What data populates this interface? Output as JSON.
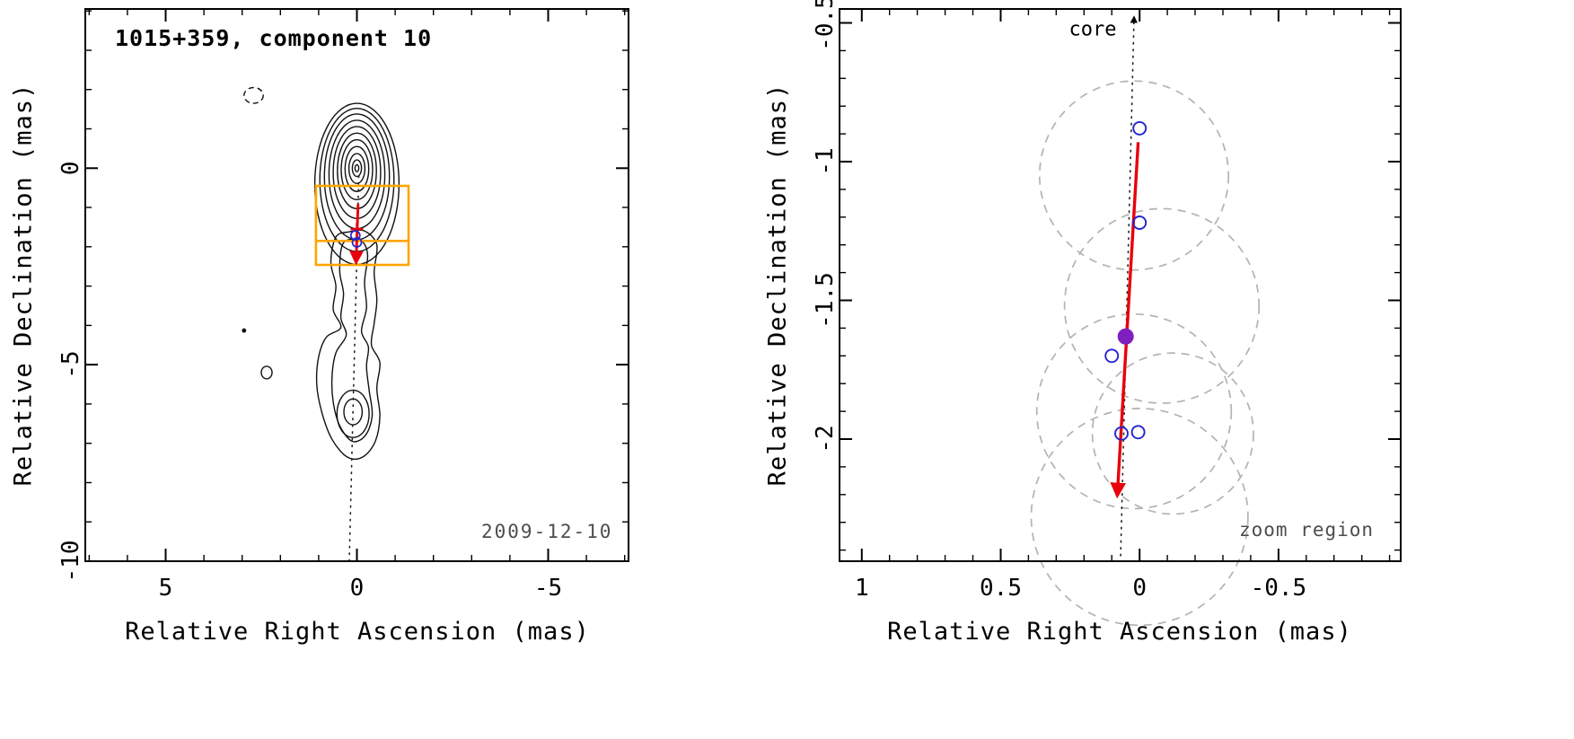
{
  "left_panel": {
    "title": "1015+359, component 10",
    "date_label": "2009-12-10",
    "xlabel": "Relative Right Ascension (mas)",
    "ylabel": "Relative Declination (mas)"
  },
  "right_panel": {
    "xlabel": "Relative Right Ascension (mas)",
    "ylabel": "Relative Declination (mas)",
    "core_label": "core",
    "zoom_region_label": "zoom region"
  },
  "colors": {
    "frame": "#000000",
    "contour": "#111111",
    "zoom_box": "#ffa500",
    "arrow_red": "#e8000b",
    "component_blue": "#2424cf",
    "epoch_purple": "#7f1fbf",
    "beam_gray": "#b3b3b3",
    "dotted_black": "#222222",
    "muted_text": "#4d4d4d"
  },
  "chart_data": [
    {
      "type": "contour",
      "panel": "left",
      "title": "1015+359, component 10",
      "date": "2009-12-10",
      "xlabel": "Relative Right Ascension (mas)",
      "ylabel": "Relative Declination (mas)",
      "xlim": [
        7.1,
        -7.1
      ],
      "ylim_top": 4.05,
      "ylim_bottom": -10,
      "x_major_ticks": [
        {
          "value": 5,
          "label": "5"
        },
        {
          "value": 0,
          "label": "0"
        },
        {
          "value": -5,
          "label": "-5"
        }
      ],
      "y_major_ticks": [
        {
          "value": 0,
          "label": "0"
        },
        {
          "value": -5,
          "label": "-5"
        },
        {
          "value": -10,
          "label": "-10"
        }
      ],
      "x_minor_step": 1,
      "y_minor_step": 1,
      "core_contour_ellipses": [
        {
          "cx": 0,
          "cy": -0.4,
          "rx": 1.1,
          "ry": 2.05
        },
        {
          "cx": 0,
          "cy": -0.3,
          "rx": 0.97,
          "ry": 1.82
        },
        {
          "cx": 0,
          "cy": -0.22,
          "rx": 0.85,
          "ry": 1.6
        },
        {
          "cx": 0,
          "cy": -0.16,
          "rx": 0.73,
          "ry": 1.38
        },
        {
          "cx": 0,
          "cy": -0.11,
          "rx": 0.62,
          "ry": 1.17
        },
        {
          "cx": 0,
          "cy": -0.07,
          "rx": 0.51,
          "ry": 0.96
        },
        {
          "cx": 0,
          "cy": -0.04,
          "rx": 0.41,
          "ry": 0.76
        },
        {
          "cx": 0,
          "cy": -0.02,
          "rx": 0.31,
          "ry": 0.57
        },
        {
          "cx": 0,
          "cy": -0.01,
          "rx": 0.21,
          "ry": 0.38
        },
        {
          "cx": 0,
          "cy": 0.0,
          "rx": 0.12,
          "ry": 0.21
        },
        {
          "cx": 0,
          "cy": 0.0,
          "rx": 0.05,
          "ry": 0.09
        }
      ],
      "jet_contour_paths": [
        [
          [
            0.55,
            -1.75
          ],
          [
            0.68,
            -2.4
          ],
          [
            0.55,
            -3.0
          ],
          [
            0.62,
            -3.6
          ],
          [
            0.42,
            -4.05
          ],
          [
            0.8,
            -4.3
          ],
          [
            1.0,
            -4.8
          ],
          [
            1.05,
            -5.5
          ],
          [
            0.92,
            -6.2
          ],
          [
            0.65,
            -6.9
          ],
          [
            0.25,
            -7.35
          ],
          [
            -0.15,
            -7.35
          ],
          [
            -0.48,
            -6.95
          ],
          [
            -0.6,
            -6.3
          ],
          [
            -0.52,
            -5.6
          ],
          [
            -0.6,
            -4.95
          ],
          [
            -0.38,
            -4.5
          ],
          [
            -0.45,
            -3.95
          ],
          [
            -0.52,
            -3.35
          ],
          [
            -0.45,
            -2.65
          ],
          [
            -0.52,
            -1.95
          ],
          [
            -0.2,
            -1.6
          ],
          [
            0.2,
            -1.62
          ]
        ],
        [
          [
            0.35,
            -1.9
          ],
          [
            0.45,
            -2.6
          ],
          [
            0.35,
            -3.2
          ],
          [
            0.42,
            -3.8
          ],
          [
            0.28,
            -4.25
          ],
          [
            0.55,
            -4.7
          ],
          [
            0.65,
            -5.3
          ],
          [
            0.62,
            -5.95
          ],
          [
            0.45,
            -6.55
          ],
          [
            0.12,
            -6.95
          ],
          [
            -0.22,
            -6.8
          ],
          [
            -0.4,
            -6.3
          ],
          [
            -0.32,
            -5.65
          ],
          [
            -0.25,
            -5.05
          ],
          [
            -0.3,
            -4.55
          ],
          [
            -0.12,
            -4.15
          ],
          [
            -0.25,
            -3.55
          ],
          [
            -0.2,
            -2.9
          ],
          [
            -0.28,
            -2.2
          ],
          [
            -0.1,
            -1.85
          ]
        ]
      ],
      "jet_inner_ellipses": [
        {
          "cx": 0.1,
          "cy": -6.25,
          "rx": 0.42,
          "ry": 0.6
        },
        {
          "cx": 0.1,
          "cy": -6.2,
          "rx": 0.24,
          "ry": 0.33
        }
      ],
      "negative_contour": {
        "cx": 2.7,
        "cy": 1.85,
        "rx": 0.25,
        "ry": 0.2
      },
      "faint_features": [
        {
          "cx": 2.95,
          "cy": -4.13,
          "rx": 0.04,
          "ry": 0.04
        },
        {
          "cx": 2.36,
          "cy": -5.2,
          "rx": 0.14,
          "ry": 0.16
        }
      ],
      "jet_axis_line": {
        "x1": -0.05,
        "y1": -0.2,
        "x2": 0.2,
        "y2": -10.0
      },
      "zoom_box": {
        "x_left": 1.07,
        "x_right": -1.35,
        "y_top": -0.45,
        "y_bottom": -2.46,
        "divider_y": -1.85
      },
      "motion_arrow": {
        "x1": -0.03,
        "y1": -0.92,
        "x2": 0.02,
        "y2": -2.38
      },
      "cross_marker": {
        "x": 0.0,
        "y": -1.55
      },
      "component_points": [
        {
          "x": 0.04,
          "y": -1.71
        },
        {
          "x": 0.0,
          "y": -1.89
        }
      ]
    },
    {
      "type": "scatter",
      "panel": "right",
      "xlabel": "Relative Right Ascension (mas)",
      "ylabel": "Relative Declination (mas)",
      "xlim": [
        1.08,
        -0.94
      ],
      "ylim_top": -0.45,
      "ylim_bottom": -2.44,
      "x_major_ticks": [
        {
          "value": 1,
          "label": "1"
        },
        {
          "value": 0.5,
          "label": "0.5"
        },
        {
          "value": 0,
          "label": "0"
        },
        {
          "value": -0.5,
          "label": "-0.5"
        }
      ],
      "y_major_ticks": [
        {
          "value": -0.5,
          "label": "-0.5"
        },
        {
          "value": -1,
          "label": "-1"
        },
        {
          "value": -1.5,
          "label": "-1.5"
        },
        {
          "value": -2,
          "label": "-2"
        }
      ],
      "x_minor_step": 0.1,
      "y_minor_step": 0.1,
      "beam_circles": [
        {
          "cx": 0.02,
          "cy": -1.05,
          "r": 0.34
        },
        {
          "cx": -0.08,
          "cy": -1.52,
          "r": 0.35
        },
        {
          "cx": 0.02,
          "cy": -1.9,
          "r": 0.35
        },
        {
          "cx": -0.12,
          "cy": -1.98,
          "r": 0.29
        },
        {
          "cx": 0.0,
          "cy": -2.28,
          "r": 0.39
        }
      ],
      "component_points": [
        {
          "x": 0.0,
          "y": -0.88
        },
        {
          "x": 0.0,
          "y": -1.22
        },
        {
          "x": 0.1,
          "y": -1.7
        },
        {
          "x": 0.065,
          "y": -1.98
        },
        {
          "x": 0.005,
          "y": -1.975
        }
      ],
      "current_epoch_point": {
        "x": 0.05,
        "y": -1.63
      },
      "motion_arrow": {
        "x1": 0.005,
        "y1": -0.93,
        "x2": 0.08,
        "y2": -2.2
      },
      "core_axis_line": {
        "x1": 0.068,
        "y1": -2.42,
        "x2": 0.02,
        "y2": -0.48
      },
      "core_label": "core",
      "zoom_region_label": "zoom region"
    }
  ]
}
